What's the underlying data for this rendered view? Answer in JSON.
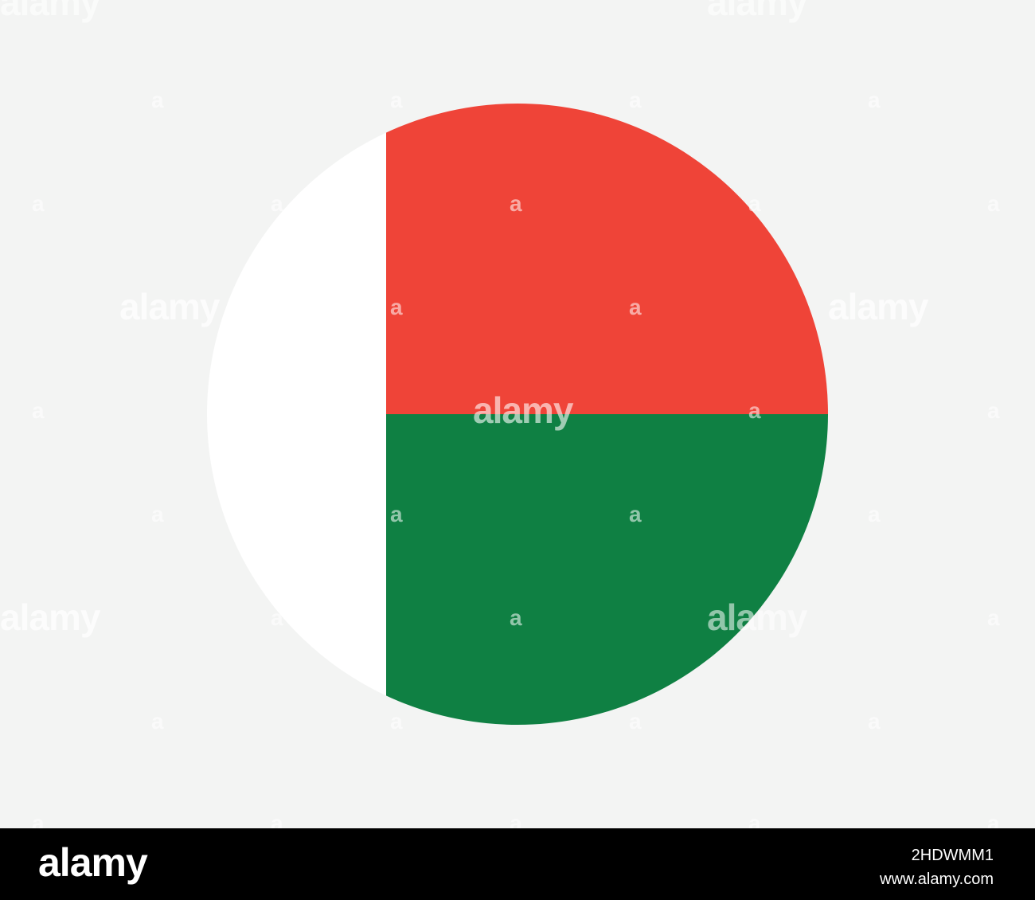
{
  "image": {
    "subject": "round-flag-of-madagascar",
    "colors": {
      "background": "#f3f4f3",
      "white": "#ffffff",
      "red": "#ef4438",
      "green": "#0f8043",
      "footer": "#000000"
    }
  },
  "watermark": {
    "word": "alamy",
    "letter": "a"
  },
  "footer": {
    "logo": "alamy",
    "image_id": "2HDWMM1",
    "site": "www.alamy.com"
  }
}
